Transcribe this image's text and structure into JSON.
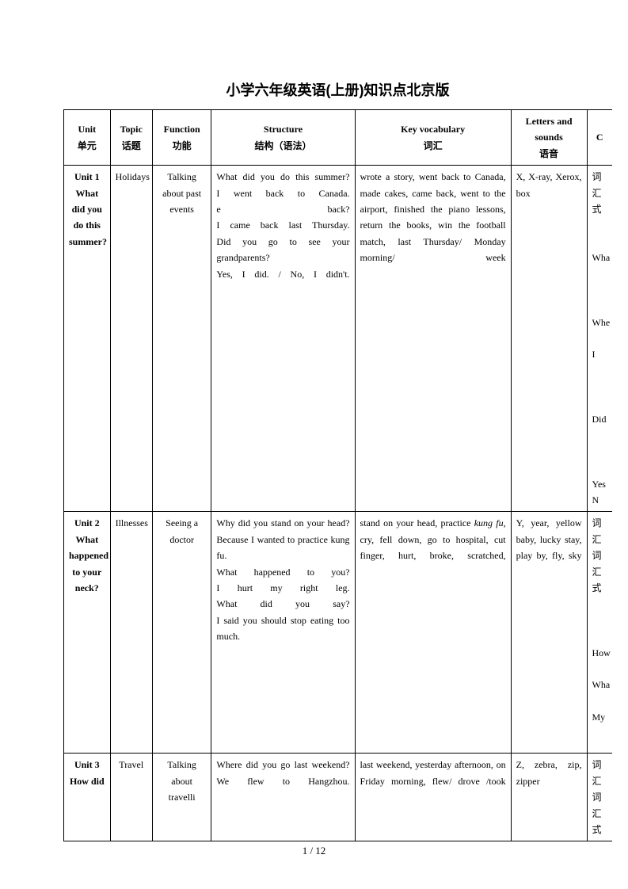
{
  "title": "小学六年级英语(上册)知识点北京版",
  "headers": {
    "unit": "Unit\n单元",
    "topic": "Topic\n话题",
    "function": "Function\n功能",
    "structure": "Structure\n结构（语法）",
    "vocab": "Key vocabulary\n词汇",
    "letters": "Letters and sounds\n语音",
    "overflow": "C"
  },
  "rows": [
    {
      "unit": "Unit 1 What did you do this summer?",
      "topic": "Holidays",
      "function": "Talking about past events",
      "structure": "What did you do this summer?\nI went back to Canada.\ne back?\nI came back last Thursday.\nDid you go to see your grandparents?\nYes, I did. / No, I didn't.",
      "vocab": "wrote a story, went back to Canada, made cakes, came back, went to the airport, finished the piano lessons, return the books, win the football match, last Thursday/ Monday morning/ week",
      "letters": "X, X-ray, Xerox, box",
      "overflow": "词汇\n式\n\n\nWha\n\n\n\nWhe\n\nI\n\n\n\nDid\n\n\n\nYes\nN"
    },
    {
      "unit": "Unit 2 What happened to your neck?",
      "topic": "Illnesses",
      "function": "Seeing a doctor",
      "structure": "Why did you stand on your head?\nBecause I wanted to practice kung fu.\nWhat happened to you?\nI hurt my right leg.\nWhat did you say?\nI said you should stop eating too much.",
      "vocab": "stand on your head, practice kung fu, cry, fell down, go to hospital, cut finger, hurt, broke, scratched,",
      "letters": "Y, year, yellow baby, lucky stay, play by, fly, sky",
      "overflow": "词汇\n词汇\n式\n\n\n\nHow\n\nWha\n\nMy"
    },
    {
      "unit": "Unit 3 How did",
      "topic": "Travel",
      "function": "Talking about travelli",
      "structure": "Where did you go last weekend?\nWe flew to Hangzhou.",
      "vocab": "last weekend, yesterday afternoon, on Friday morning, flew/ drove /took",
      "letters": "Z, zebra, zip, zipper",
      "overflow": "词汇\n词汇\n式"
    }
  ],
  "footer": "1 / 12"
}
